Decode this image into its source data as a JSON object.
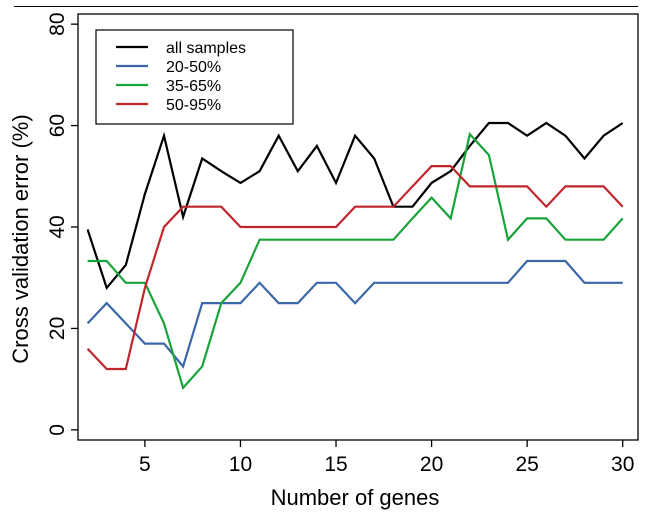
{
  "chart_data": {
    "type": "line",
    "xlabel": "Number of genes",
    "ylabel": "Cross validation error (%)",
    "xlim": [
      1.5,
      30.8
    ],
    "ylim": [
      -2,
      82
    ],
    "xticks": [
      5,
      10,
      15,
      20,
      25,
      30
    ],
    "yticks": [
      0,
      20,
      40,
      60,
      80
    ],
    "grid": false,
    "legend_position": "top-left",
    "x": [
      2,
      3,
      4,
      5,
      6,
      7,
      8,
      9,
      10,
      11,
      12,
      13,
      14,
      15,
      16,
      17,
      18,
      19,
      20,
      21,
      22,
      23,
      24,
      25,
      26,
      27,
      28,
      29,
      30
    ],
    "series": [
      {
        "name": "all samples",
        "color": "#000000",
        "values": [
          39.5,
          28,
          32.5,
          46.5,
          58,
          42,
          53.5,
          51,
          48.7,
          51,
          58,
          51,
          56,
          48.7,
          58,
          53.5,
          44,
          44,
          48.7,
          51,
          56,
          60.5,
          60.5,
          58,
          60.5,
          58,
          53.5,
          58,
          60.5
        ]
      },
      {
        "name": "20-50%",
        "color": "#3b67a8",
        "values": [
          21,
          25,
          21,
          17,
          17,
          12.5,
          25,
          25,
          25,
          29,
          25,
          25,
          29,
          29,
          25,
          29,
          29,
          29,
          29,
          29,
          29,
          29,
          29,
          33.3,
          33.3,
          33.3,
          29,
          29,
          29
        ]
      },
      {
        "name": "35-65%",
        "color": "#1aa33b",
        "values": [
          33.3,
          33.3,
          29,
          29,
          21,
          8.3,
          12.5,
          25,
          29,
          37.5,
          37.5,
          37.5,
          37.5,
          37.5,
          37.5,
          37.5,
          37.5,
          41.7,
          45.8,
          41.7,
          58.3,
          54.2,
          37.5,
          41.7,
          41.7,
          37.5,
          37.5,
          37.5,
          41.7
        ]
      },
      {
        "name": "50-95%",
        "color": "#c0272d",
        "values": [
          16,
          12,
          12,
          28,
          40,
          44,
          44,
          44,
          40,
          40,
          40,
          40,
          40,
          40,
          44,
          44,
          44,
          48,
          52,
          52,
          48,
          48,
          48,
          48,
          44,
          48,
          48,
          48,
          44
        ]
      }
    ]
  }
}
